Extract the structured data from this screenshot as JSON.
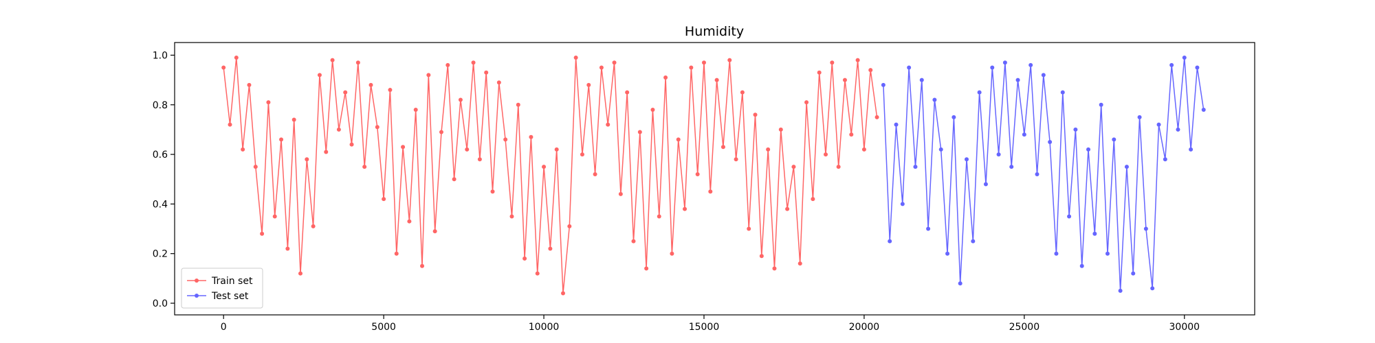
{
  "chart_data": {
    "type": "line",
    "title": "Humidity",
    "xlim": [
      -1528,
      32194
    ],
    "ylim": [
      -0.047,
      1.051
    ],
    "xticks": [
      0,
      5000,
      10000,
      15000,
      20000,
      25000,
      30000
    ],
    "yticks": [
      {
        "value": 0,
        "label": "0.0"
      },
      {
        "value": 0.2,
        "label": "0.2"
      },
      {
        "value": 0.4,
        "label": "0.4"
      },
      {
        "value": 0.6,
        "label": "0.6"
      },
      {
        "value": 0.8,
        "label": "0.8"
      },
      {
        "value": 1,
        "label": "1.0"
      }
    ],
    "legend": "lower left",
    "series": [
      {
        "name": "Train set",
        "color": "#ff0000",
        "x": [
          0,
          200,
          400,
          600,
          800,
          1000,
          1200,
          1400,
          1600,
          1800,
          2000,
          2200,
          2400,
          2600,
          2800,
          3000,
          3200,
          3400,
          3600,
          3800,
          4000,
          4200,
          4400,
          4600,
          4800,
          5000,
          5200,
          5400,
          5600,
          5800,
          6000,
          6200,
          6400,
          6600,
          6800,
          7000,
          7200,
          7400,
          7600,
          7800,
          8000,
          8200,
          8400,
          8600,
          8800,
          9000,
          9200,
          9400,
          9600,
          9800,
          10000,
          10200,
          10400,
          10600,
          10800,
          11000,
          11200,
          11400,
          11600,
          11800,
          12000,
          12200,
          12400,
          12600,
          12800,
          13000,
          13200,
          13400,
          13600,
          13800,
          14000,
          14200,
          14400,
          14600,
          14800,
          15000,
          15200,
          15400,
          15600,
          15800,
          16000,
          16200,
          16400,
          16600,
          16800,
          17000,
          17200,
          17400,
          17600,
          17800,
          18000,
          18200,
          18400,
          18600,
          18800,
          19000,
          19200,
          19400,
          19600,
          19800,
          20000,
          20200,
          20400
        ],
        "values": [
          0.95,
          0.72,
          0.99,
          0.62,
          0.88,
          0.55,
          0.28,
          0.81,
          0.35,
          0.66,
          0.22,
          0.74,
          0.12,
          0.58,
          0.31,
          0.92,
          0.61,
          0.98,
          0.7,
          0.85,
          0.64,
          0.97,
          0.55,
          0.88,
          0.71,
          0.42,
          0.86,
          0.2,
          0.63,
          0.33,
          0.78,
          0.15,
          0.92,
          0.29,
          0.69,
          0.96,
          0.5,
          0.82,
          0.62,
          0.97,
          0.58,
          0.93,
          0.45,
          0.89,
          0.66,
          0.35,
          0.8,
          0.18,
          0.67,
          0.12,
          0.55,
          0.22,
          0.62,
          0.04,
          0.31,
          0.99,
          0.6,
          0.88,
          0.52,
          0.95,
          0.72,
          0.97,
          0.44,
          0.85,
          0.25,
          0.69,
          0.14,
          0.78,
          0.35,
          0.91,
          0.2,
          0.66,
          0.38,
          0.95,
          0.52,
          0.97,
          0.45,
          0.9,
          0.63,
          0.98,
          0.58,
          0.85,
          0.3,
          0.76,
          0.19,
          0.62,
          0.14,
          0.7,
          0.38,
          0.55,
          0.16,
          0.81,
          0.42,
          0.93,
          0.6,
          0.97,
          0.55,
          0.9,
          0.68,
          0.98,
          0.62,
          0.94,
          0.75
        ]
      },
      {
        "name": "Test set",
        "color": "#0000ff",
        "x": [
          20600,
          20800,
          21000,
          21200,
          21400,
          21600,
          21800,
          22000,
          22200,
          22400,
          22600,
          22800,
          23000,
          23200,
          23400,
          23600,
          23800,
          24000,
          24200,
          24400,
          24600,
          24800,
          25000,
          25200,
          25400,
          25600,
          25800,
          26000,
          26200,
          26400,
          26600,
          26800,
          27000,
          27200,
          27400,
          27600,
          27800,
          28000,
          28200,
          28400,
          28600,
          28800,
          29000,
          29200,
          29400,
          29600,
          29800,
          30000,
          30200,
          30400,
          30600
        ],
        "values": [
          0.88,
          0.25,
          0.72,
          0.4,
          0.95,
          0.55,
          0.9,
          0.3,
          0.82,
          0.62,
          0.2,
          0.75,
          0.08,
          0.58,
          0.25,
          0.85,
          0.48,
          0.95,
          0.6,
          0.97,
          0.55,
          0.9,
          0.68,
          0.96,
          0.52,
          0.92,
          0.65,
          0.2,
          0.85,
          0.35,
          0.7,
          0.15,
          0.62,
          0.28,
          0.8,
          0.2,
          0.66,
          0.05,
          0.55,
          0.12,
          0.75,
          0.3,
          0.06,
          0.72,
          0.58,
          0.96,
          0.7,
          0.99,
          0.62,
          0.95,
          0.78
        ]
      }
    ]
  }
}
